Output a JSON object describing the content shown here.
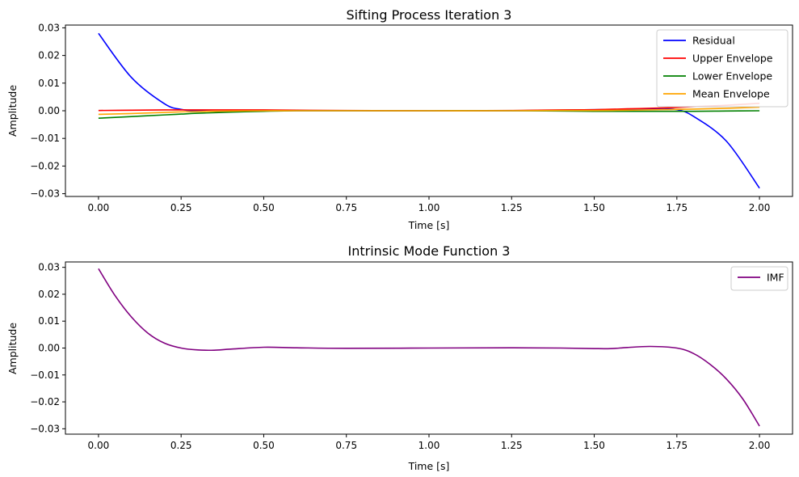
{
  "chart_data": [
    {
      "type": "line",
      "title": "Sifting Process Iteration 3",
      "xlabel": "Time [s]",
      "ylabel": "Amplitude",
      "xlim": [
        -0.1,
        2.1
      ],
      "ylim": [
        -0.031,
        0.031
      ],
      "xticks": [
        "0.00",
        "0.25",
        "0.50",
        "0.75",
        "1.00",
        "1.25",
        "1.50",
        "1.75",
        "2.00"
      ],
      "yticks": [
        "0.03",
        "0.02",
        "0.01",
        "0.00",
        "-0.01",
        "-0.02",
        "-0.03"
      ],
      "grid": false,
      "legend_position": "top-right",
      "x": [
        0,
        0.1,
        0.2,
        0.25,
        0.3,
        0.4,
        0.5,
        0.6,
        0.75,
        1.0,
        1.25,
        1.4,
        1.5,
        1.6,
        1.7,
        1.75,
        1.8,
        1.9,
        2.0
      ],
      "series": [
        {
          "name": "Residual",
          "color": "#0000ff",
          "values": [
            0.028,
            0.012,
            0.0025,
            0.0005,
            0.0,
            -0.0003,
            0.0,
            0.0,
            0.0,
            0.0,
            0.0,
            0.0002,
            0.0004,
            0.0005,
            0.0006,
            0.0004,
            -0.002,
            -0.011,
            -0.028
          ]
        },
        {
          "name": "Upper Envelope",
          "color": "#ff0000",
          "values": [
            0.0001,
            0.0002,
            0.0003,
            0.0003,
            0.0003,
            0.0003,
            0.0003,
            0.0002,
            0.0001,
            0.0,
            0.0001,
            0.0003,
            0.0004,
            0.0007,
            0.001,
            0.0012,
            0.0015,
            0.002,
            0.0027
          ]
        },
        {
          "name": "Lower Envelope",
          "color": "#008000",
          "values": [
            -0.0027,
            -0.0021,
            -0.0015,
            -0.0012,
            -0.0009,
            -0.0005,
            -0.0002,
            0.0,
            0.0,
            0.0,
            0.0,
            -0.0001,
            -0.0002,
            -0.0002,
            -0.0002,
            -0.0002,
            -0.0002,
            -0.0001,
            0.0
          ]
        },
        {
          "name": "Mean Envelope",
          "color": "#ffa500",
          "values": [
            -0.0013,
            -0.001,
            -0.0006,
            -0.0004,
            -0.0003,
            -0.0001,
            0.0,
            0.0,
            0.0,
            0.0,
            0.0,
            0.0001,
            0.0001,
            0.0002,
            0.0004,
            0.0005,
            0.0006,
            0.0009,
            0.0013
          ]
        }
      ]
    },
    {
      "type": "line",
      "title": "Intrinsic Mode Function 3",
      "xlabel": "Time [s]",
      "ylabel": "Amplitude",
      "xlim": [
        -0.1,
        2.1
      ],
      "ylim": [
        -0.032,
        0.032
      ],
      "xticks": [
        "0.00",
        "0.25",
        "0.50",
        "0.75",
        "1.00",
        "1.25",
        "1.50",
        "1.75",
        "2.00"
      ],
      "yticks": [
        "0.03",
        "0.02",
        "0.01",
        "0.00",
        "-0.01",
        "-0.02",
        "-0.03"
      ],
      "grid": false,
      "legend_position": "top-right",
      "x": [
        0,
        0.05,
        0.1,
        0.15,
        0.2,
        0.25,
        0.3,
        0.35,
        0.4,
        0.5,
        0.6,
        0.75,
        1.0,
        1.25,
        1.4,
        1.5,
        1.55,
        1.6,
        1.67,
        1.75,
        1.8,
        1.85,
        1.9,
        1.95,
        2.0
      ],
      "series": [
        {
          "name": "IMF",
          "color": "#800080",
          "values": [
            0.0295,
            0.0195,
            0.0115,
            0.0055,
            0.0018,
            0.0,
            -0.0007,
            -0.0008,
            -0.0004,
            0.0003,
            0.0001,
            -0.0001,
            0.0,
            0.0001,
            0.0,
            -0.0002,
            -0.0002,
            0.0002,
            0.0006,
            0.0,
            -0.002,
            -0.006,
            -0.0115,
            -0.019,
            -0.029
          ]
        }
      ]
    }
  ]
}
